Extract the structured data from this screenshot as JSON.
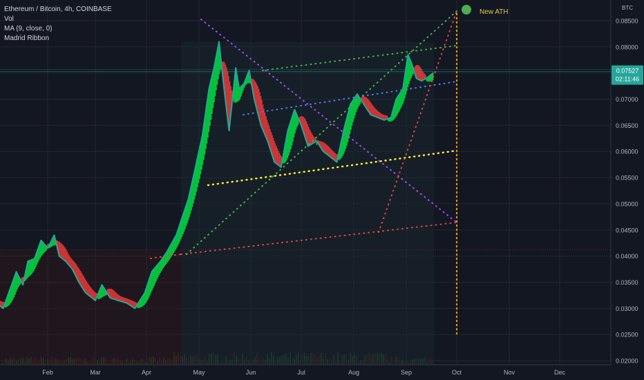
{
  "header": {
    "symbol": "Ethereum / Bitcoin, 4h, COINBASE",
    "indicators": [
      "Vol",
      "MA (9, close, 0)",
      "Madrid Ribbon"
    ]
  },
  "price_axis": {
    "currency": "BTC",
    "last_price": "0.07527",
    "countdown": "02:11:46"
  },
  "annotation": {
    "label": "New ATH"
  },
  "colors": {
    "background": "#131722",
    "bull": "#00e640",
    "bear": "#f23b3b",
    "price_line": "#26a69a",
    "ath_marker": "#4caf50",
    "ath_text": "#e6c84a"
  },
  "chart_data": {
    "type": "line",
    "title": "Ethereum / Bitcoin, 4h, COINBASE",
    "xlabel": "",
    "ylabel": "",
    "x_ticks": [
      "Feb",
      "Mar",
      "Apr",
      "May",
      "Jun",
      "Jul",
      "Aug",
      "Sep",
      "Oct",
      "Nov",
      "Dec"
    ],
    "y_ticks": [
      "0.08500",
      "0.08000",
      "0.07500",
      "0.07000",
      "0.06500",
      "0.06000",
      "0.05500",
      "0.05000",
      "0.04500",
      "0.04000",
      "0.03500",
      "0.03000",
      "0.02500",
      "0.02000"
    ],
    "ylim": [
      0.019,
      0.0875
    ],
    "grid": true,
    "series": [
      {
        "name": "ETH/BTC",
        "x": [
          "2020-01-01",
          "2020-01-05",
          "2020-01-09",
          "2020-01-13",
          "2020-01-17",
          "2020-01-20",
          "2020-01-24",
          "2020-01-28",
          "2020-02-01",
          "2020-02-05",
          "2020-02-08",
          "2020-02-12",
          "2020-02-16",
          "2020-02-20",
          "2020-02-24",
          "2020-03-01",
          "2020-03-05",
          "2020-03-10",
          "2020-03-15",
          "2020-03-20",
          "2020-03-25",
          "2020-03-31",
          "2020-04-04",
          "2020-04-09",
          "2020-04-13",
          "2020-04-18",
          "2020-04-21",
          "2020-04-25",
          "2020-04-29",
          "2020-05-03",
          "2020-05-07",
          "2020-05-10",
          "2020-05-13",
          "2020-05-16",
          "2020-05-19",
          "2020-05-21",
          "2020-05-23",
          "2020-05-25",
          "2020-05-28",
          "2020-05-31",
          "2020-06-03",
          "2020-06-07",
          "2020-06-11",
          "2020-06-15",
          "2020-06-19",
          "2020-06-23",
          "2020-06-27",
          "2020-07-01",
          "2020-07-05",
          "2020-07-10",
          "2020-07-14",
          "2020-07-18",
          "2020-07-22",
          "2020-07-26",
          "2020-07-30",
          "2020-08-03",
          "2020-08-07",
          "2020-08-11",
          "2020-08-15",
          "2020-08-19",
          "2020-08-23",
          "2020-08-26",
          "2020-08-30",
          "2020-09-02",
          "2020-09-04",
          "2020-09-07",
          "2020-09-10",
          "2020-09-13",
          "2020-09-17"
        ],
        "values": [
          0.031,
          0.03,
          0.0335,
          0.037,
          0.0345,
          0.039,
          0.0395,
          0.043,
          0.0415,
          0.044,
          0.04,
          0.039,
          0.0375,
          0.035,
          0.033,
          0.0315,
          0.0345,
          0.032,
          0.0315,
          0.031,
          0.03,
          0.033,
          0.037,
          0.039,
          0.041,
          0.044,
          0.047,
          0.051,
          0.057,
          0.063,
          0.072,
          0.076,
          0.081,
          0.072,
          0.064,
          0.07,
          0.076,
          0.072,
          0.073,
          0.0755,
          0.07,
          0.065,
          0.062,
          0.058,
          0.057,
          0.064,
          0.068,
          0.065,
          0.061,
          0.062,
          0.06,
          0.059,
          0.058,
          0.064,
          0.069,
          0.071,
          0.069,
          0.067,
          0.0665,
          0.066,
          0.0665,
          0.07,
          0.072,
          0.0785,
          0.077,
          0.074,
          0.0735,
          0.074,
          0.075
        ]
      }
    ]
  }
}
